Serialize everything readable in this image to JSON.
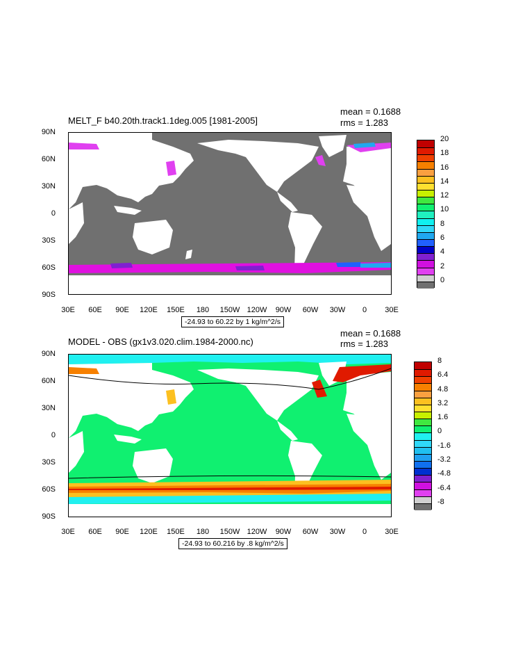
{
  "panel1": {
    "title": "MELT_F b40.20th.track1.1deg.005 [1981-2005]",
    "mean": "mean = 0.1688",
    "rms": "rms = 1.283",
    "range": "-24.93 to 60.22 by 1 kg/m^2/s",
    "colorbar_labels": [
      "20",
      "18",
      "16",
      "14",
      "12",
      "10",
      "8",
      "6",
      "4",
      "2",
      "0"
    ],
    "colors": [
      "#c00000",
      "#e01a00",
      "#f04000",
      "#f78000",
      "#faa040",
      "#fcc020",
      "#ffe030",
      "#c8f000",
      "#40e840",
      "#10f070",
      "#20f0c0",
      "#10f0f0",
      "#30d8f8",
      "#20a8f0",
      "#2060ff",
      "#0000c8",
      "#8020d0",
      "#d010e0",
      "#e040f0",
      "#d0d0d0",
      "#707070"
    ]
  },
  "panel2": {
    "title": "MODEL - OBS (gx1v3.020.clim.1984-2000.nc)",
    "mean": "mean = 0.1688",
    "rms": "rms = 1.283",
    "range": "-24.93 to 60.216 by .8 kg/m^2/s",
    "colorbar_labels": [
      "8",
      "6.4",
      "4.8",
      "3.2",
      "1.6",
      "0",
      "-1.6",
      "-3.2",
      "-4.8",
      "-6.4",
      "-8"
    ],
    "colors": [
      "#c00000",
      "#e01a00",
      "#f04000",
      "#f78000",
      "#faa040",
      "#fcc020",
      "#ffe030",
      "#c8f000",
      "#40e840",
      "#10f070",
      "#20f0f0",
      "#30d8f8",
      "#20c0f0",
      "#20a0f0",
      "#1070f0",
      "#0030d0",
      "#8020d0",
      "#d010e0",
      "#e040f0",
      "#d0d0d0",
      "#707070"
    ]
  },
  "axes": {
    "yticks": [
      "90N",
      "60N",
      "30N",
      "0",
      "30S",
      "60S",
      "90S"
    ],
    "xticks": [
      "30E",
      "60E",
      "90E",
      "120E",
      "150E",
      "180",
      "150W",
      "120W",
      "90W",
      "60W",
      "30W",
      "0",
      "30E"
    ]
  },
  "map_colors": {
    "land": "#ffffff",
    "ocean_panel1": "#707070",
    "ocean_panel2": "#10f070",
    "ice_ring": "#e010e0"
  }
}
